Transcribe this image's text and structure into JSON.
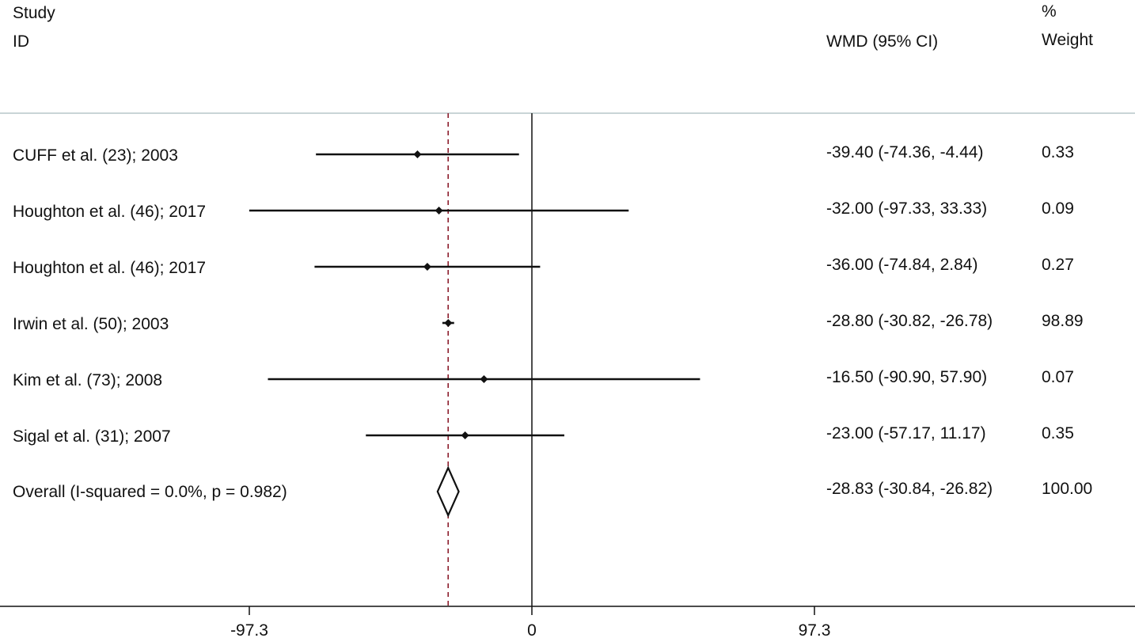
{
  "chart_data": {
    "type": "forest",
    "columns": {
      "study_header_line1": "Study",
      "study_header_line2": "ID",
      "effect_header": "WMD (95% CI)",
      "weight_header_line1": "%",
      "weight_header_line2": "Weight"
    },
    "studies": [
      {
        "label": "CUFF  et al. (23); 2003",
        "estimate": -39.4,
        "lower": -74.36,
        "upper": -4.44,
        "ci_text": "-39.40 (-74.36, -4.44)",
        "weight": "0.33"
      },
      {
        "label": "Houghton  et al. (46); 2017",
        "estimate": -32.0,
        "lower": -97.33,
        "upper": 33.33,
        "ci_text": "-32.00 (-97.33, 33.33)",
        "weight": "0.09"
      },
      {
        "label": "Houghton  et al. (46); 2017",
        "estimate": -36.0,
        "lower": -74.84,
        "upper": 2.84,
        "ci_text": "-36.00 (-74.84, 2.84)",
        "weight": "0.27"
      },
      {
        "label": "Irwin et al. (50); 2003",
        "estimate": -28.8,
        "lower": -30.82,
        "upper": -26.78,
        "ci_text": "-28.80 (-30.82, -26.78)",
        "weight": "98.89"
      },
      {
        "label": "Kim et al. (73); 2008",
        "estimate": -16.5,
        "lower": -90.9,
        "upper": 57.9,
        "ci_text": "-16.50 (-90.90, 57.90)",
        "weight": "0.07"
      },
      {
        "label": "Sigal et al. (31); 2007",
        "estimate": -23.0,
        "lower": -57.17,
        "upper": 11.17,
        "ci_text": "-23.00 (-57.17, 11.17)",
        "weight": "0.35"
      }
    ],
    "overall": {
      "label": "Overall  (I-squared = 0.0%, p = 0.982)",
      "estimate": -28.83,
      "lower": -30.84,
      "upper": -26.82,
      "ci_text": "-28.83 (-30.84, -26.82)",
      "weight": "100.00"
    },
    "xaxis": {
      "ticks": [
        -97.3,
        0,
        97.3
      ],
      "tick_labels": [
        "-97.3",
        "0",
        "97.3"
      ],
      "null_line": 0
    },
    "colors": {
      "line": "#111111",
      "separator": "#b7c6c9",
      "overall_line": "#8b1c2b"
    }
  }
}
